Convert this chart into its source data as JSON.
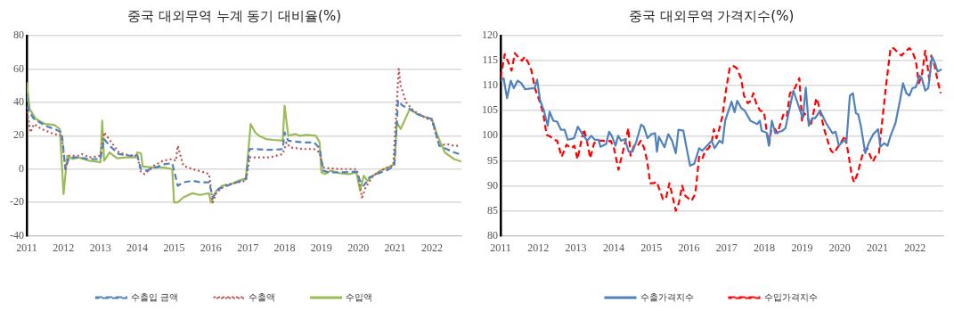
{
  "chart_data": [
    {
      "type": "line",
      "title": "중국 대외무역 누계 동기 대비율(%)",
      "xlim": [
        2011,
        2022.8
      ],
      "xticks": [
        2011,
        2012,
        2013,
        2014,
        2015,
        2016,
        2017,
        2018,
        2019,
        2020,
        2021,
        2022
      ],
      "ylim": [
        -40,
        80
      ],
      "yticks": [
        -40,
        -20,
        0,
        20,
        40,
        60,
        80
      ],
      "grid": "y",
      "legend": "bottom",
      "marker": "none",
      "series": [
        {
          "name": "수출입 금액",
          "color": "#4f81bd",
          "line_style": "dashed",
          "x": [
            2011.0,
            2011.05,
            2011.2,
            2011.5,
            2011.75,
            2011.95,
            2012.05,
            2012.15,
            2012.4,
            2012.7,
            2013.0,
            2013.1,
            2013.25,
            2013.5,
            2013.8,
            2014.0,
            2014.1,
            2014.25,
            2014.5,
            2014.75,
            2014.95,
            2015.1,
            2015.25,
            2015.5,
            2015.75,
            2015.95,
            2016.05,
            2016.2,
            2016.5,
            2016.95,
            2017.05,
            2017.2,
            2017.6,
            2017.95,
            2018.0,
            2018.1,
            2018.5,
            2018.8,
            2018.95,
            2019.05,
            2019.2,
            2019.5,
            2019.95,
            2020.05,
            2020.15,
            2020.3,
            2020.5,
            2020.8,
            2020.98,
            2021.08,
            2021.2,
            2021.4,
            2021.6,
            2021.85,
            2022.0,
            2022.2,
            2022.4,
            2022.6,
            2022.75
          ],
          "values": [
            44,
            35,
            30,
            26,
            24,
            22,
            0,
            7,
            7,
            6,
            6,
            18,
            14,
            9,
            8,
            8.5,
            0,
            -1,
            1,
            3,
            3.5,
            -10,
            -8,
            -7,
            -8,
            -8,
            -17,
            -12,
            -9.5,
            -6,
            12,
            12,
            11.5,
            12,
            22,
            17,
            16,
            16,
            12.5,
            -1,
            -2,
            -2,
            -1.5,
            -7,
            -10,
            -5,
            -3,
            -0.5,
            2,
            41,
            38,
            36,
            33,
            31,
            30,
            14,
            12,
            10,
            9
          ]
        },
        {
          "name": "수출액",
          "color": "#c0504d",
          "line_style": "dotted",
          "x": [
            2011.0,
            2011.1,
            2011.2,
            2011.4,
            2011.75,
            2011.95,
            2012.05,
            2012.15,
            2012.4,
            2012.5,
            2012.7,
            2013.0,
            2013.1,
            2013.3,
            2013.5,
            2013.8,
            2014.0,
            2014.1,
            2014.2,
            2014.45,
            2014.7,
            2014.95,
            2015.05,
            2015.1,
            2015.25,
            2015.5,
            2015.75,
            2015.95,
            2016.05,
            2016.15,
            2016.4,
            2016.95,
            2017.05,
            2017.2,
            2017.6,
            2017.95,
            2018.05,
            2018.15,
            2018.5,
            2018.8,
            2018.95,
            2019.05,
            2019.2,
            2019.5,
            2019.95,
            2020.0,
            2020.1,
            2020.2,
            2020.4,
            2020.7,
            2020.95,
            2021.1,
            2021.15,
            2021.3,
            2021.5,
            2021.8,
            2022.0,
            2022.2,
            2022.4,
            2022.6,
            2022.75
          ],
          "values": [
            37,
            22,
            27,
            24,
            21,
            20,
            0,
            8,
            8,
            9,
            7,
            8,
            22,
            16,
            10,
            8,
            8,
            -2,
            -3,
            2,
            5,
            6,
            5,
            14,
            2,
            0,
            -1.5,
            -3,
            -20,
            -14,
            -9.5,
            -7,
            7,
            7,
            7,
            9,
            16,
            13,
            12,
            12,
            10,
            1,
            0.5,
            0,
            0,
            -4,
            -17,
            -11,
            -4,
            0,
            2,
            60,
            50,
            40,
            35,
            31,
            29,
            14,
            15,
            14,
            14
          ]
        },
        {
          "name": "수입액",
          "color": "#9bbb59",
          "line_style": "solid",
          "x": [
            2011.0,
            2011.08,
            2011.25,
            2011.5,
            2011.75,
            2011.9,
            2012.0,
            2012.1,
            2012.25,
            2012.4,
            2012.7,
            2012.9,
            2013.0,
            2013.05,
            2013.1,
            2013.25,
            2013.45,
            2013.7,
            2013.95,
            2014.0,
            2014.1,
            2014.15,
            2014.4,
            2014.7,
            2014.95,
            2015.0,
            2015.1,
            2015.25,
            2015.5,
            2015.7,
            2015.95,
            2016.0,
            2016.15,
            2016.3,
            2016.5,
            2016.75,
            2016.95,
            2017.08,
            2017.2,
            2017.3,
            2017.5,
            2017.7,
            2017.95,
            2018.0,
            2018.1,
            2018.3,
            2018.4,
            2018.6,
            2018.85,
            2018.95,
            2019.0,
            2019.1,
            2019.25,
            2019.5,
            2019.75,
            2019.95,
            2020.05,
            2020.15,
            2020.25,
            2020.4,
            2020.6,
            2020.8,
            2020.98,
            2021.05,
            2021.15,
            2021.4,
            2021.6,
            2021.85,
            2022.0,
            2022.15,
            2022.35,
            2022.6,
            2022.8
          ],
          "values": [
            52,
            36,
            30,
            27,
            26.5,
            24,
            -15,
            8,
            6,
            7,
            5,
            4.5,
            4,
            29,
            5,
            10,
            6.5,
            7,
            7,
            10,
            9.5,
            1.5,
            1,
            1,
            0,
            -20,
            -20,
            -17,
            -14.5,
            -15.5,
            -14.5,
            -20,
            -13,
            -10,
            -9.5,
            -7,
            -5.5,
            27,
            22,
            20,
            18,
            17.5,
            17,
            38,
            20,
            21,
            20,
            20.5,
            20,
            16,
            -2,
            -3,
            -1,
            -2.5,
            -3,
            -2,
            -13,
            -4,
            -7,
            -4,
            -1,
            1,
            3,
            28,
            24,
            36,
            33,
            31,
            30,
            20,
            10,
            6,
            4.5
          ]
        }
      ]
    },
    {
      "type": "line",
      "title": "중국 대외무역 가격지수(%)",
      "xlim": [
        2011,
        2022.75
      ],
      "xticks": [
        2011,
        2012,
        2013,
        2014,
        2015,
        2016,
        2017,
        2018,
        2019,
        2020,
        2021,
        2022
      ],
      "ylim": [
        80,
        120
      ],
      "yticks": [
        80,
        85,
        90,
        95,
        100,
        105,
        110,
        115,
        120
      ],
      "grid": "y",
      "legend": "bottom",
      "marker": "none",
      "series": [
        {
          "name": "수출가격지수",
          "color": "#4f81bd",
          "line_style": "solid",
          "x": [
            2011.0,
            2011.08,
            2011.17,
            2011.27,
            2011.35,
            2011.45,
            2011.55,
            2011.65,
            2011.9,
            2011.97,
            2012.05,
            2012.15,
            2012.25,
            2012.3,
            2012.4,
            2012.5,
            2012.6,
            2012.7,
            2012.78,
            2012.95,
            2013.05,
            2013.2,
            2013.3,
            2013.4,
            2013.5,
            2013.6,
            2013.65,
            2013.8,
            2013.88,
            2013.95,
            2014.05,
            2014.12,
            2014.2,
            2014.3,
            2014.4,
            2014.5,
            2014.6,
            2014.73,
            2014.8,
            2014.9,
            2015.0,
            2015.1,
            2015.15,
            2015.2,
            2015.35,
            2015.45,
            2015.55,
            2015.65,
            2015.72,
            2015.85,
            2015.95,
            2016.03,
            2016.14,
            2016.27,
            2016.35,
            2016.48,
            2016.6,
            2016.68,
            2016.81,
            2016.89,
            2016.96,
            2017.13,
            2017.21,
            2017.28,
            2017.39,
            2017.48,
            2017.63,
            2017.81,
            2017.88,
            2017.93,
            2018.06,
            2018.12,
            2018.2,
            2018.29,
            2018.48,
            2018.56,
            2018.77,
            2019.02,
            2019.1,
            2019.18,
            2019.27,
            2019.35,
            2019.48,
            2019.64,
            2019.81,
            2019.89,
            2019.98,
            2020.1,
            2020.18,
            2020.27,
            2020.35,
            2020.43,
            2020.49,
            2020.56,
            2020.68,
            2020.77,
            2020.89,
            2021.02,
            2021.08,
            2021.18,
            2021.27,
            2021.35,
            2021.48,
            2021.6,
            2021.68,
            2021.77,
            2021.85,
            2021.93,
            2022.02,
            2022.12,
            2022.18,
            2022.27,
            2022.35,
            2022.45,
            2022.53,
            2022.6,
            2022.71
          ],
          "values": [
            111,
            111.5,
            107.5,
            111,
            109.5,
            111,
            110.5,
            109.3,
            109.5,
            111.2,
            107,
            105,
            102,
            104.8,
            103,
            102.8,
            101.2,
            101.2,
            99.2,
            99.5,
            101.8,
            100,
            99,
            100,
            99.2,
            99.2,
            97.8,
            98.3,
            100.8,
            100,
            98,
            100,
            99,
            99.3,
            96.8,
            96.8,
            98.8,
            102.2,
            101.8,
            99.5,
            100.3,
            100.5,
            96.8,
            99.8,
            97.7,
            100.3,
            99,
            96.5,
            101.2,
            101,
            97,
            94,
            94.4,
            97.5,
            97,
            98,
            99,
            97.5,
            99,
            98.5,
            103,
            106.8,
            104.7,
            107,
            105.5,
            105,
            103,
            102.3,
            103,
            101,
            100.6,
            98,
            103,
            100.5,
            101,
            101.5,
            109,
            103.5,
            109.6,
            102,
            103.5,
            103.5,
            105,
            102.5,
            100.5,
            100.8,
            98,
            99,
            98.8,
            108,
            108.5,
            104.5,
            104.3,
            102,
            96.5,
            98.5,
            100.3,
            101.3,
            97.8,
            98.5,
            98,
            100,
            102.5,
            107,
            110.5,
            108.5,
            108,
            109.5,
            109.7,
            112,
            111.5,
            109,
            109.5,
            115.8,
            114.5,
            112.8,
            113.3
          ]
        },
        {
          "name": "수입가격지수",
          "color": "#ff0000",
          "line_style": "dashed",
          "x": [
            2011.0,
            2011.11,
            2011.19,
            2011.29,
            2011.38,
            2011.49,
            2011.57,
            2011.64,
            2011.74,
            2011.82,
            2011.91,
            2012.03,
            2012.13,
            2012.22,
            2012.33,
            2012.41,
            2012.5,
            2012.62,
            2012.75,
            2012.87,
            2012.96,
            2013.04,
            2013.13,
            2013.21,
            2013.29,
            2013.38,
            2013.48,
            2013.59,
            2013.71,
            2013.84,
            2013.92,
            2014.01,
            2014.13,
            2014.22,
            2014.3,
            2014.39,
            2014.45,
            2014.54,
            2014.64,
            2014.72,
            2014.81,
            2014.89,
            2014.97,
            2015.06,
            2015.14,
            2015.23,
            2015.31,
            2015.39,
            2015.48,
            2015.56,
            2015.65,
            2015.73,
            2015.82,
            2015.9,
            2015.98,
            2016.07,
            2016.17,
            2016.27,
            2016.35,
            2016.43,
            2016.52,
            2016.6,
            2016.66,
            2016.73,
            2016.81,
            2016.89,
            2016.98,
            2017.08,
            2017.16,
            2017.27,
            2017.38,
            2017.46,
            2017.56,
            2017.64,
            2017.71,
            2017.79,
            2017.89,
            2017.99,
            2018.08,
            2018.13,
            2018.18,
            2018.27,
            2018.35,
            2018.43,
            2018.52,
            2018.6,
            2018.68,
            2018.81,
            2018.93,
            2019.0,
            2019.06,
            2019.14,
            2019.23,
            2019.29,
            2019.38,
            2019.43,
            2019.52,
            2019.6,
            2019.68,
            2019.77,
            2019.85,
            2019.93,
            2020.02,
            2020.14,
            2020.23,
            2020.31,
            2020.38,
            2020.48,
            2020.56,
            2020.64,
            2020.73,
            2020.81,
            2020.88,
            2020.96,
            2021.04,
            2021.13,
            2021.23,
            2021.35,
            2021.43,
            2021.56,
            2021.64,
            2021.74,
            2021.85,
            2021.93,
            2022.02,
            2022.1,
            2022.18,
            2022.27,
            2022.33,
            2022.38,
            2022.43,
            2022.52,
            2022.6,
            2022.68
          ],
          "values": [
            111.5,
            116.3,
            115,
            113,
            116.5,
            115.5,
            115,
            115.8,
            114.5,
            113,
            109.5,
            107,
            104.5,
            100.2,
            99.8,
            99.2,
            99,
            95.8,
            98.2,
            97.5,
            98,
            95.3,
            98.5,
            101.3,
            99,
            95.5,
            98.5,
            99,
            99,
            98.8,
            99,
            97.5,
            93.2,
            96,
            98.5,
            101.5,
            96,
            98,
            98,
            99,
            97.5,
            95,
            90.5,
            90.5,
            90.8,
            89,
            87.3,
            87.5,
            90.5,
            88,
            85,
            86.5,
            90,
            88,
            87.5,
            87,
            88.5,
            95.8,
            95.3,
            97,
            97.5,
            98.5,
            101.3,
            99.5,
            101.5,
            104,
            109,
            113.5,
            114,
            113.5,
            111.5,
            108,
            106.5,
            107,
            108.5,
            106.3,
            105,
            104.8,
            100,
            98.3,
            101,
            101.5,
            100.5,
            102.5,
            104.5,
            104,
            108.5,
            109.5,
            111.5,
            103,
            104.5,
            103.8,
            102,
            104,
            107.5,
            106.5,
            103.5,
            101,
            99,
            97,
            96.5,
            97.5,
            98.5,
            100,
            96.5,
            92.5,
            90.7,
            92.5,
            95,
            97,
            97.5,
            96,
            94.8,
            96,
            96.5,
            103,
            110,
            117.5,
            117.5,
            116.5,
            116,
            116.8,
            117.5,
            116.8,
            115,
            110.5,
            112,
            117,
            114,
            111,
            116,
            114,
            111,
            108.5
          ]
        }
      ]
    }
  ]
}
